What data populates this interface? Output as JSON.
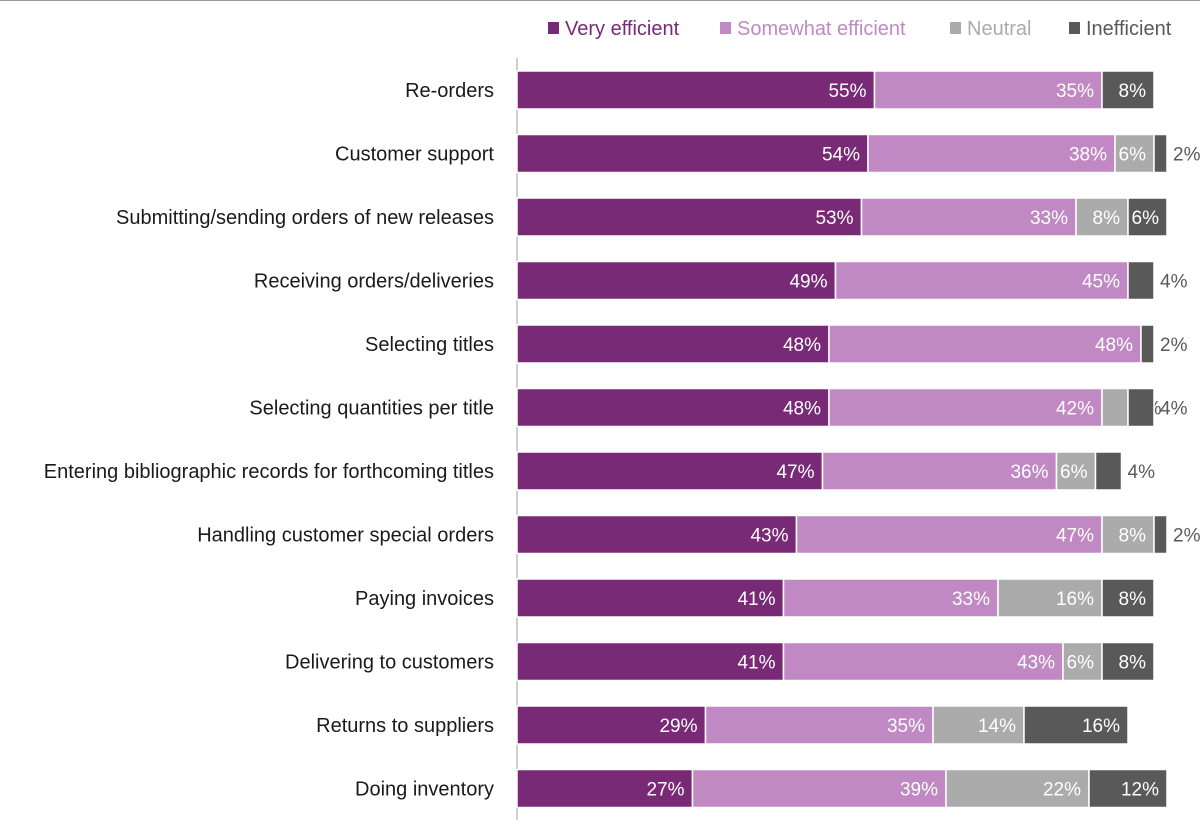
{
  "chart_data": {
    "type": "bar",
    "orientation": "horizontal",
    "stacked": true,
    "title": "",
    "xlabel": "",
    "ylabel": "",
    "xlim": [
      0,
      100
    ],
    "legend_position": "top",
    "categories": [
      "Re-orders",
      "Customer support",
      "Submitting/sending orders of new releases",
      "Receiving orders/deliveries",
      "Selecting titles",
      "Selecting quantities per title",
      "Entering bibliographic records for forthcoming titles",
      "Handling customer special orders",
      "Paying invoices",
      "Delivering to customers",
      "Returns to suppliers",
      "Doing inventory"
    ],
    "series": [
      {
        "name": "Very efficient",
        "color": "#782a76",
        "label_color": "#ffffff",
        "values": [
          55,
          54,
          53,
          49,
          48,
          48,
          47,
          43,
          41,
          41,
          29,
          27
        ],
        "labels": [
          "55%",
          "54%",
          "53%",
          "49%",
          "48%",
          "48%",
          "47%",
          "43%",
          "41%",
          "41%",
          "29%",
          "27%"
        ]
      },
      {
        "name": "Somewhat efficient",
        "color": "#c089c3",
        "label_color": "#ffffff",
        "values": [
          35,
          38,
          33,
          45,
          48,
          42,
          36,
          47,
          33,
          43,
          35,
          39
        ],
        "labels": [
          "35%",
          "38%",
          "33%",
          "45%",
          "48%",
          "42%",
          "36%",
          "47%",
          "33%",
          "43%",
          "35%",
          "39%"
        ]
      },
      {
        "name": "Neutral",
        "color": "#ababab",
        "label_color": "#ffffff",
        "values": [
          0,
          6,
          8,
          0,
          0,
          4,
          6,
          8,
          16,
          6,
          14,
          22
        ],
        "labels": [
          "",
          "6%",
          "8%",
          "",
          "",
          "4%",
          "6%",
          "8%",
          "16%",
          "6%",
          "14%",
          "22%"
        ]
      },
      {
        "name": "Inefficient",
        "color": "#595959",
        "label_color": "#ffffff",
        "values": [
          8,
          2,
          6,
          4,
          2,
          4,
          4,
          2,
          8,
          8,
          16,
          12
        ],
        "labels": [
          "8%",
          "2%",
          "6%",
          "4%",
          "2%",
          "4%",
          "4%",
          "2%",
          "8%",
          "8%",
          "16%",
          "12%"
        ]
      }
    ]
  }
}
